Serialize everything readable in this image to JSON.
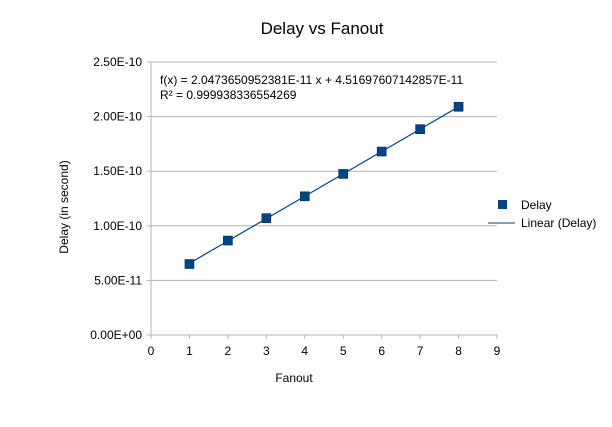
{
  "chart_data": {
    "type": "scatter",
    "title": "Delay vs Fanout",
    "xlabel": "Fanout",
    "ylabel": "Delay (in second)",
    "xlim": [
      0,
      9
    ],
    "ylim": [
      0,
      2.5e-10
    ],
    "x_ticks": [
      0,
      1,
      2,
      3,
      4,
      5,
      6,
      7,
      8,
      9
    ],
    "x_tick_labels": [
      "0",
      "1",
      "2",
      "3",
      "4",
      "5",
      "6",
      "7",
      "8",
      "9"
    ],
    "y_ticks": [
      0,
      5e-11,
      1e-10,
      1.5e-10,
      2e-10,
      2.5e-10
    ],
    "y_tick_labels": [
      "0.00E+00",
      "5.00E-11",
      "1.00E-10",
      "1.50E-10",
      "2.00E-10",
      "2.50E-10"
    ],
    "grid": "horizontal",
    "legend_position": "right",
    "series": [
      {
        "name": "Delay",
        "x": [
          1,
          2,
          3,
          4,
          5,
          6,
          7,
          8
        ],
        "y": [
          6.5e-11,
          8.65e-11,
          1.07e-10,
          1.27e-10,
          1.475e-10,
          1.68e-10,
          1.885e-10,
          2.09e-10
        ],
        "color": "#004586",
        "marker": "square"
      }
    ],
    "trendline": {
      "name": "Linear (Delay)",
      "slope": 2.0473650952381e-11,
      "intercept": 4.51697607142857e-11,
      "color": "#004586"
    },
    "annotations": {
      "equation": "f(x) = 2.0473650952381E-11 x + 4.51697607142857E-11",
      "r_squared": "R² = 0.999938336554269"
    }
  }
}
